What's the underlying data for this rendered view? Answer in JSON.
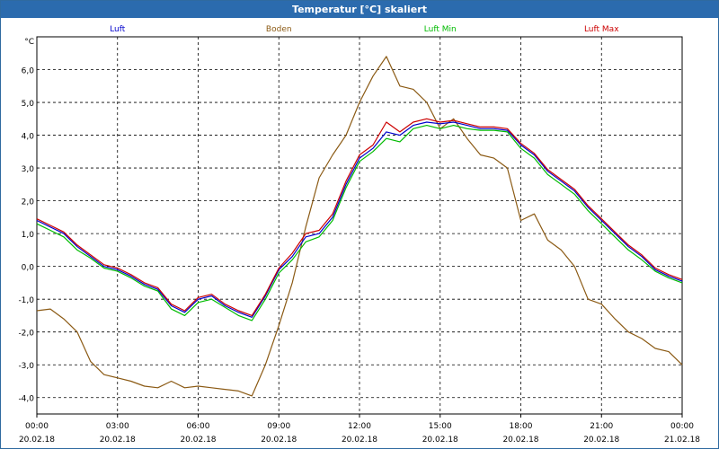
{
  "chart_data": {
    "type": "line",
    "title": "Temperatur [°C] skaliert",
    "ylabel": "°C",
    "ylim": [
      -4.5,
      7.0
    ],
    "yticks": [
      -4,
      -3,
      -2,
      -1,
      0,
      1,
      2,
      3,
      4,
      5,
      6
    ],
    "yticklabels": [
      "-4,0",
      "-3,0",
      "-2,0",
      "-1,0",
      "0,0",
      "1,0",
      "2,0",
      "3,0",
      "4,0",
      "5,0",
      "6,0"
    ],
    "xlim": [
      0,
      24
    ],
    "xticks": [
      0,
      3,
      6,
      9,
      12,
      15,
      18,
      21,
      24
    ],
    "xticklabels_time": [
      "00:00",
      "03:00",
      "06:00",
      "09:00",
      "12:00",
      "15:00",
      "18:00",
      "21:00",
      "00:00"
    ],
    "xticklabels_date": [
      "20.02.18",
      "20.02.18",
      "20.02.18",
      "20.02.18",
      "20.02.18",
      "20.02.18",
      "20.02.18",
      "20.02.18",
      "21.02.18"
    ],
    "grid": true,
    "series": [
      {
        "name": "Luft",
        "color": "#0000cc",
        "x": [
          0,
          0.5,
          1,
          1.5,
          2,
          2.5,
          3,
          3.5,
          4,
          4.5,
          5,
          5.5,
          6,
          6.5,
          7,
          7.5,
          8,
          8.5,
          9,
          9.5,
          10,
          10.5,
          11,
          11.5,
          12,
          12.5,
          13,
          13.5,
          14,
          14.5,
          15,
          15.5,
          16,
          16.5,
          17,
          17.5,
          18,
          18.5,
          19,
          19.5,
          20,
          20.5,
          21,
          21.5,
          22,
          22.5,
          23,
          23.5,
          24
        ],
        "values": [
          1.4,
          1.2,
          1.0,
          0.6,
          0.3,
          0.0,
          -0.1,
          -0.3,
          -0.55,
          -0.7,
          -1.2,
          -1.4,
          -1.0,
          -0.9,
          -1.2,
          -1.4,
          -1.55,
          -0.9,
          -0.1,
          0.3,
          0.9,
          1.0,
          1.5,
          2.5,
          3.3,
          3.6,
          4.1,
          4.0,
          4.3,
          4.4,
          4.35,
          4.4,
          4.3,
          4.2,
          4.2,
          4.15,
          3.7,
          3.4,
          2.9,
          2.6,
          2.3,
          1.8,
          1.4,
          1.0,
          0.6,
          0.3,
          -0.1,
          -0.3,
          -0.45
        ]
      },
      {
        "name": "Boden",
        "color": "#8b5a14",
        "x": [
          0,
          0.5,
          1,
          1.5,
          2,
          2.5,
          3,
          3.5,
          4,
          4.5,
          5,
          5.5,
          6,
          6.5,
          7,
          7.5,
          8,
          8.5,
          9,
          9.5,
          10,
          10.5,
          11,
          11.5,
          12,
          12.5,
          13,
          13.5,
          14,
          14.5,
          15,
          15.5,
          16,
          16.5,
          17,
          17.5,
          18,
          18.5,
          19,
          19.5,
          20,
          20.5,
          21,
          21.5,
          22,
          22.5,
          23,
          23.5,
          24
        ],
        "values": [
          -1.35,
          -1.3,
          -1.6,
          -2.0,
          -2.9,
          -3.3,
          -3.4,
          -3.5,
          -3.65,
          -3.7,
          -3.5,
          -3.7,
          -3.65,
          -3.7,
          -3.75,
          -3.8,
          -3.95,
          -3.0,
          -1.8,
          -0.5,
          1.2,
          2.7,
          3.4,
          4.0,
          5.0,
          5.8,
          6.4,
          5.5,
          5.4,
          5.0,
          4.2,
          4.5,
          3.9,
          3.4,
          3.3,
          3.0,
          1.4,
          1.6,
          0.8,
          0.5,
          0.0,
          -1.0,
          -1.15,
          -1.6,
          -2.0,
          -2.2,
          -2.5,
          -2.6,
          -3.0
        ]
      },
      {
        "name": "Luft Min",
        "color": "#00bb00",
        "x": [
          0,
          0.5,
          1,
          1.5,
          2,
          2.5,
          3,
          3.5,
          4,
          4.5,
          5,
          5.5,
          6,
          6.5,
          7,
          7.5,
          8,
          8.5,
          9,
          9.5,
          10,
          10.5,
          11,
          11.5,
          12,
          12.5,
          13,
          13.5,
          14,
          14.5,
          15,
          15.5,
          16,
          16.5,
          17,
          17.5,
          18,
          18.5,
          19,
          19.5,
          20,
          20.5,
          21,
          21.5,
          22,
          22.5,
          23,
          23.5,
          24
        ],
        "values": [
          1.3,
          1.1,
          0.9,
          0.5,
          0.25,
          -0.05,
          -0.15,
          -0.35,
          -0.6,
          -0.75,
          -1.3,
          -1.5,
          -1.1,
          -1.0,
          -1.25,
          -1.5,
          -1.65,
          -1.0,
          -0.2,
          0.2,
          0.75,
          0.9,
          1.4,
          2.4,
          3.2,
          3.5,
          3.9,
          3.8,
          4.2,
          4.3,
          4.2,
          4.3,
          4.2,
          4.15,
          4.15,
          4.1,
          3.6,
          3.3,
          2.8,
          2.5,
          2.2,
          1.7,
          1.3,
          0.9,
          0.5,
          0.2,
          -0.15,
          -0.35,
          -0.5
        ]
      },
      {
        "name": "Luft Max",
        "color": "#cc0000",
        "x": [
          0,
          0.5,
          1,
          1.5,
          2,
          2.5,
          3,
          3.5,
          4,
          4.5,
          5,
          5.5,
          6,
          6.5,
          7,
          7.5,
          8,
          8.5,
          9,
          9.5,
          10,
          10.5,
          11,
          11.5,
          12,
          12.5,
          13,
          13.5,
          14,
          14.5,
          15,
          15.5,
          16,
          16.5,
          17,
          17.5,
          18,
          18.5,
          19,
          19.5,
          20,
          20.5,
          21,
          21.5,
          22,
          22.5,
          23,
          23.5,
          24
        ],
        "values": [
          1.45,
          1.25,
          1.05,
          0.65,
          0.35,
          0.05,
          -0.05,
          -0.25,
          -0.5,
          -0.65,
          -1.15,
          -1.35,
          -0.95,
          -0.85,
          -1.15,
          -1.35,
          -1.5,
          -0.85,
          -0.05,
          0.4,
          1.0,
          1.1,
          1.6,
          2.6,
          3.4,
          3.7,
          4.4,
          4.1,
          4.4,
          4.5,
          4.4,
          4.45,
          4.35,
          4.25,
          4.25,
          4.2,
          3.75,
          3.45,
          2.95,
          2.65,
          2.35,
          1.85,
          1.45,
          1.05,
          0.65,
          0.35,
          -0.05,
          -0.25,
          -0.4
        ]
      }
    ]
  }
}
